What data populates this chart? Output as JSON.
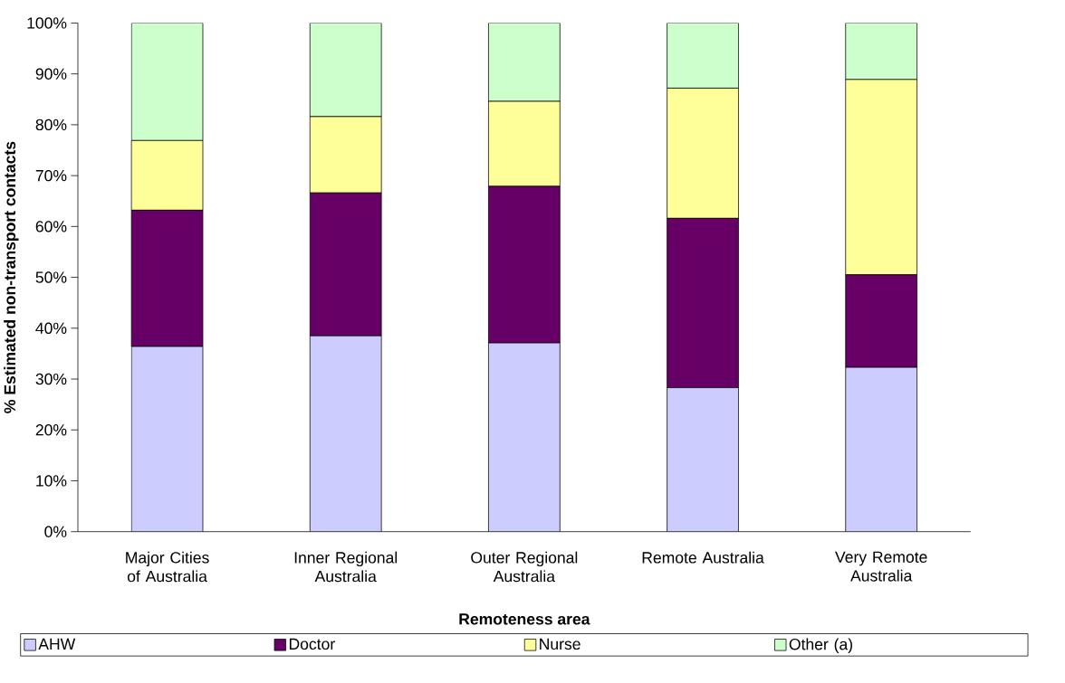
{
  "chart_data": {
    "type": "bar",
    "stacked": true,
    "xlabel": "Remoteness area",
    "ylabel": "% Estimated non-transport contacts",
    "categories": [
      "Major Cities of Australia",
      "Inner Regional Australia",
      "Outer Regional Australia",
      "Remote Australia",
      "Very Remote Australia"
    ],
    "series": [
      {
        "name": "AHW",
        "color": "#ccccff",
        "values": [
          36.4,
          38.5,
          37.1,
          28.3,
          32.3
        ]
      },
      {
        "name": "Doctor",
        "color": "#660066",
        "values": [
          26.8,
          28.1,
          30.8,
          33.3,
          18.2
        ]
      },
      {
        "name": "Nurse",
        "color": "#ffff99",
        "values": [
          13.7,
          15.0,
          16.7,
          25.6,
          38.4
        ]
      },
      {
        "name": "Other (a)",
        "color": "#ccffcc",
        "values": [
          23.1,
          18.4,
          15.4,
          12.8,
          11.1
        ]
      }
    ],
    "ylim": [
      0,
      100
    ],
    "yticks": [
      {
        "value": 0,
        "label": "0%"
      },
      {
        "value": 10,
        "label": "10%"
      },
      {
        "value": 20,
        "label": "20%"
      },
      {
        "value": 30,
        "label": "30%"
      },
      {
        "value": 40,
        "label": "40%"
      },
      {
        "value": 50,
        "label": "50%"
      },
      {
        "value": 60,
        "label": "60%"
      },
      {
        "value": 70,
        "label": "70%"
      },
      {
        "value": 80,
        "label": "80%"
      },
      {
        "value": 90,
        "label": "90%"
      },
      {
        "value": 100,
        "label": "100%"
      }
    ],
    "grid": false,
    "legend": "bottom"
  }
}
